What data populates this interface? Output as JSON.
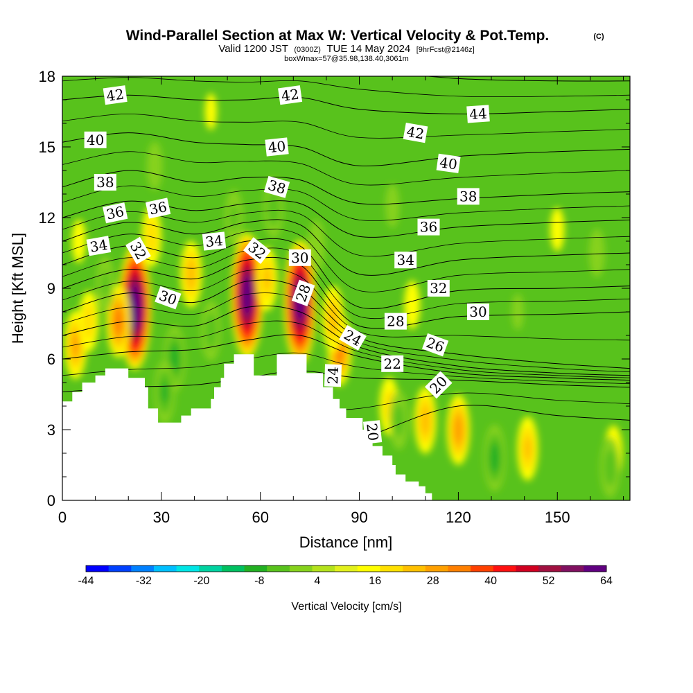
{
  "header": {
    "title_main": "Wind-Parallel Section at Max W: Vertical Velocity & Pot.Temp.",
    "title_mark": "(C)",
    "valid_prefix": "Valid 1200 JST",
    "valid_utc": "(0300Z)",
    "valid_date": "TUE 14 May 2024",
    "forecast": "[9hrFcst@2146z]",
    "boxw": "boxWmax=57@35.98,138.40,3061m"
  },
  "chart_data": {
    "type": "heatmap",
    "xlabel": "Distance [nm]",
    "ylabel": "Height [Kft MSL]",
    "xlim": [
      0,
      172
    ],
    "ylim": [
      0,
      18
    ],
    "xticks": [
      0,
      30,
      60,
      90,
      120,
      150
    ],
    "yticks": [
      0,
      3,
      6,
      9,
      12,
      15,
      18
    ],
    "xtick_labels": [
      "0",
      "30",
      "60",
      "90",
      "120",
      "150"
    ],
    "ytick_labels": [
      "0",
      "3",
      "6",
      "9",
      "12",
      "15",
      "18"
    ],
    "terrain": [
      {
        "x": 0,
        "y": 4.2
      },
      {
        "x": 3,
        "y": 4.2
      },
      {
        "x": 3,
        "y": 4.6
      },
      {
        "x": 6,
        "y": 4.6
      },
      {
        "x": 6,
        "y": 5.0
      },
      {
        "x": 10,
        "y": 5.0
      },
      {
        "x": 10,
        "y": 5.3
      },
      {
        "x": 13,
        "y": 5.3
      },
      {
        "x": 13,
        "y": 5.6
      },
      {
        "x": 20,
        "y": 5.6
      },
      {
        "x": 20,
        "y": 5.2
      },
      {
        "x": 25,
        "y": 5.2
      },
      {
        "x": 25,
        "y": 4.8
      },
      {
        "x": 26,
        "y": 4.8
      },
      {
        "x": 26,
        "y": 3.9
      },
      {
        "x": 29,
        "y": 3.9
      },
      {
        "x": 29,
        "y": 3.3
      },
      {
        "x": 36,
        "y": 3.3
      },
      {
        "x": 36,
        "y": 3.6
      },
      {
        "x": 39,
        "y": 3.6
      },
      {
        "x": 39,
        "y": 3.9
      },
      {
        "x": 45,
        "y": 3.9
      },
      {
        "x": 45,
        "y": 4.3
      },
      {
        "x": 46,
        "y": 4.3
      },
      {
        "x": 46,
        "y": 4.8
      },
      {
        "x": 48,
        "y": 4.8
      },
      {
        "x": 48,
        "y": 5.2
      },
      {
        "x": 49,
        "y": 5.2
      },
      {
        "x": 49,
        "y": 5.8
      },
      {
        "x": 52,
        "y": 5.8
      },
      {
        "x": 52,
        "y": 6.2
      },
      {
        "x": 58,
        "y": 6.2
      },
      {
        "x": 58,
        "y": 5.3
      },
      {
        "x": 65,
        "y": 5.3
      },
      {
        "x": 65,
        "y": 6.2
      },
      {
        "x": 74,
        "y": 6.2
      },
      {
        "x": 74,
        "y": 5.4
      },
      {
        "x": 79,
        "y": 5.4
      },
      {
        "x": 79,
        "y": 4.8
      },
      {
        "x": 82,
        "y": 4.8
      },
      {
        "x": 82,
        "y": 4.3
      },
      {
        "x": 84,
        "y": 4.3
      },
      {
        "x": 84,
        "y": 3.9
      },
      {
        "x": 86,
        "y": 3.9
      },
      {
        "x": 86,
        "y": 3.5
      },
      {
        "x": 91,
        "y": 3.5
      },
      {
        "x": 91,
        "y": 3.0
      },
      {
        "x": 92,
        "y": 3.0
      },
      {
        "x": 92,
        "y": 2.6
      },
      {
        "x": 94,
        "y": 2.6
      },
      {
        "x": 94,
        "y": 2.3
      },
      {
        "x": 97,
        "y": 2.3
      },
      {
        "x": 97,
        "y": 1.9
      },
      {
        "x": 100,
        "y": 1.9
      },
      {
        "x": 100,
        "y": 1.5
      },
      {
        "x": 101,
        "y": 1.5
      },
      {
        "x": 101,
        "y": 1.1
      },
      {
        "x": 104,
        "y": 1.1
      },
      {
        "x": 104,
        "y": 0.8
      },
      {
        "x": 108,
        "y": 0.8
      },
      {
        "x": 108,
        "y": 0.6
      },
      {
        "x": 110,
        "y": 0.6
      },
      {
        "x": 110,
        "y": 0.3
      },
      {
        "x": 112,
        "y": 0.3
      },
      {
        "x": 112,
        "y": 0.0
      }
    ],
    "plumes": [
      {
        "x": 22,
        "y": 8.2,
        "w": 64
      },
      {
        "x": 56,
        "y": 8.7,
        "w": 60
      },
      {
        "x": 72,
        "y": 8.4,
        "w": 58
      },
      {
        "x": 17,
        "y": 7.6,
        "w": 22
      },
      {
        "x": 84,
        "y": 6.4,
        "w": 22
      },
      {
        "x": 39,
        "y": 9.6,
        "w": 14
      },
      {
        "x": 62,
        "y": 9.4,
        "w": 12
      },
      {
        "x": 4,
        "y": 6.6,
        "w": 16
      },
      {
        "x": 27,
        "y": 11.2,
        "w": 10
      },
      {
        "x": 8,
        "y": 7.6,
        "w": 10
      },
      {
        "x": 82,
        "y": 7.7,
        "w": 14
      },
      {
        "x": 99,
        "y": 4.0,
        "w": 9
      },
      {
        "x": 110,
        "y": 3.4,
        "w": 14
      },
      {
        "x": 120,
        "y": 3.0,
        "w": 18
      },
      {
        "x": 141,
        "y": 2.2,
        "w": 12
      },
      {
        "x": 167,
        "y": 2.0,
        "w": 8
      },
      {
        "x": 106,
        "y": 8.3,
        "w": 6
      },
      {
        "x": 150,
        "y": 11.5,
        "w": 5
      },
      {
        "x": 45,
        "y": 16.5,
        "w": 4
      },
      {
        "x": 5,
        "y": 11.0,
        "w": 5
      },
      {
        "x": 34,
        "y": 6.0,
        "w": -14
      },
      {
        "x": 31,
        "y": 4.6,
        "w": -12
      },
      {
        "x": 45,
        "y": 7.2,
        "w": -10
      },
      {
        "x": 13,
        "y": 9.2,
        "w": -8
      },
      {
        "x": 64,
        "y": 12.4,
        "w": -10
      },
      {
        "x": 52,
        "y": 12.0,
        "w": -8
      },
      {
        "x": 77,
        "y": 10.8,
        "w": -7
      },
      {
        "x": 131,
        "y": 1.8,
        "w": -14
      },
      {
        "x": 166,
        "y": 1.4,
        "w": -10
      },
      {
        "x": 102,
        "y": 3.4,
        "w": -9
      },
      {
        "x": 28,
        "y": 14.2,
        "w": -6
      },
      {
        "x": 100,
        "y": 12.5,
        "w": -5
      },
      {
        "x": 162,
        "y": 10.5,
        "w": -6
      },
      {
        "x": 138,
        "y": 8.0,
        "w": -4
      }
    ],
    "isentrope_anchors": {
      "x": [
        0,
        20,
        40,
        56,
        72,
        90,
        120,
        150,
        172
      ],
      "levels": [
        {
          "theta": 20,
          "y": [
            1.4,
            1.5,
            1.6,
            1.9,
            2.1,
            2.6,
            4.0,
            3.6,
            3.4
          ]
        },
        {
          "theta": 22,
          "y": [
            4.6,
            4.8,
            4.9,
            5.2,
            5.5,
            5.2,
            5.1,
            4.9,
            4.8
          ]
        },
        {
          "theta": 24,
          "y": [
            6.0,
            6.3,
            6.4,
            6.8,
            7.0,
            6.1,
            5.4,
            5.2,
            5.1
          ]
        },
        {
          "theta": 26,
          "y": [
            7.0,
            7.6,
            7.4,
            8.2,
            8.0,
            6.5,
            5.7,
            5.4,
            5.3
          ]
        },
        {
          "theta": 28,
          "y": [
            8.0,
            8.8,
            8.4,
            9.3,
            9.0,
            6.9,
            6.2,
            5.8,
            5.6
          ]
        },
        {
          "theta": 30,
          "y": [
            9.0,
            9.8,
            9.4,
            10.2,
            10.0,
            7.4,
            7.8,
            7.9,
            8.0
          ]
        },
        {
          "theta": 32,
          "y": [
            10.0,
            10.8,
            10.3,
            11.0,
            10.8,
            8.2,
            8.9,
            9.0,
            9.1
          ]
        },
        {
          "theta": 34,
          "y": [
            11.0,
            11.8,
            11.3,
            11.8,
            11.7,
            9.6,
            10.2,
            10.4,
            10.5
          ]
        },
        {
          "theta": 36,
          "y": [
            12.0,
            12.7,
            12.3,
            12.6,
            12.6,
            11.2,
            11.6,
            11.8,
            11.9
          ]
        },
        {
          "theta": 38,
          "y": [
            13.3,
            14.0,
            13.5,
            13.7,
            13.6,
            12.6,
            12.8,
            13.0,
            13.1
          ]
        },
        {
          "theta": 40,
          "y": [
            15.2,
            15.6,
            15.2,
            15.1,
            15.0,
            14.2,
            14.6,
            14.8,
            14.9
          ]
        },
        {
          "theta": 42,
          "y": [
            17.0,
            17.2,
            17.0,
            17.0,
            17.1,
            16.6,
            16.4,
            16.5,
            16.6
          ]
        },
        {
          "theta": 44,
          "y": [
            18.6,
            18.7,
            18.6,
            18.5,
            18.5,
            18.3,
            17.9,
            17.8,
            17.8
          ]
        }
      ]
    },
    "contour_labels": [
      {
        "text": "42",
        "x": 16,
        "y": 17.2,
        "rot": -8
      },
      {
        "text": "42",
        "x": 69,
        "y": 17.2,
        "rot": -8
      },
      {
        "text": "44",
        "x": 126,
        "y": 16.4,
        "rot": -4
      },
      {
        "text": "40",
        "x": 10,
        "y": 15.3,
        "rot": 0
      },
      {
        "text": "40",
        "x": 65,
        "y": 15.0,
        "rot": -6
      },
      {
        "text": "42",
        "x": 107,
        "y": 15.6,
        "rot": 10
      },
      {
        "text": "40",
        "x": 117,
        "y": 14.3,
        "rot": 8
      },
      {
        "text": "38",
        "x": 13,
        "y": 13.5,
        "rot": 0
      },
      {
        "text": "38",
        "x": 65,
        "y": 13.3,
        "rot": 16
      },
      {
        "text": "38",
        "x": 123,
        "y": 12.9,
        "rot": 0
      },
      {
        "text": "36",
        "x": 16,
        "y": 12.2,
        "rot": -12
      },
      {
        "text": "36",
        "x": 29,
        "y": 12.4,
        "rot": -12
      },
      {
        "text": "36",
        "x": 111,
        "y": 11.6,
        "rot": 0
      },
      {
        "text": "34",
        "x": 11,
        "y": 10.8,
        "rot": -10
      },
      {
        "text": "34",
        "x": 46,
        "y": 11.0,
        "rot": -6
      },
      {
        "text": "34",
        "x": 104,
        "y": 10.2,
        "rot": 0
      },
      {
        "text": "32",
        "x": 23,
        "y": 10.6,
        "rot": 60
      },
      {
        "text": "32",
        "x": 59,
        "y": 10.6,
        "rot": 38
      },
      {
        "text": "32",
        "x": 114,
        "y": 9.0,
        "rot": 0
      },
      {
        "text": "30",
        "x": 32,
        "y": 8.6,
        "rot": 20
      },
      {
        "text": "30",
        "x": 72,
        "y": 10.3,
        "rot": 0
      },
      {
        "text": "30",
        "x": 126,
        "y": 8.0,
        "rot": 0
      },
      {
        "text": "28",
        "x": 73,
        "y": 8.8,
        "rot": -70
      },
      {
        "text": "28",
        "x": 101,
        "y": 7.6,
        "rot": 0
      },
      {
        "text": "24",
        "x": 88,
        "y": 6.9,
        "rot": 30
      },
      {
        "text": "26",
        "x": 113,
        "y": 6.6,
        "rot": 20
      },
      {
        "text": "22",
        "x": 100,
        "y": 5.8,
        "rot": 0
      },
      {
        "text": "24",
        "x": 82,
        "y": 5.3,
        "rot": -88
      },
      {
        "text": "20",
        "x": 114,
        "y": 4.9,
        "rot": -45
      },
      {
        "text": "20",
        "x": 94,
        "y": 2.9,
        "rot": 84
      }
    ],
    "colorbar": {
      "label": "Vertical Velocity [cm/s]",
      "ticks": [
        "-44",
        "-32",
        "-20",
        "-8",
        "4",
        "16",
        "28",
        "40",
        "52",
        "64"
      ],
      "colors": [
        "#0000ff",
        "#0040ff",
        "#0080ff",
        "#00bfff",
        "#00e5e5",
        "#00d2a0",
        "#00c060",
        "#22b022",
        "#58c21c",
        "#86d21c",
        "#b4e21c",
        "#e2f01c",
        "#ffff00",
        "#ffe000",
        "#ffc000",
        "#ffa000",
        "#ff7f00",
        "#ff4000",
        "#ff1010",
        "#d00020",
        "#a01040",
        "#801060",
        "#600080"
      ],
      "bins": [
        -44,
        -40,
        -36,
        -32,
        -28,
        -24,
        -20,
        -16,
        -12,
        -8,
        -4,
        0,
        4,
        8,
        12,
        16,
        20,
        24,
        28,
        34,
        40,
        46,
        52,
        64
      ]
    }
  }
}
